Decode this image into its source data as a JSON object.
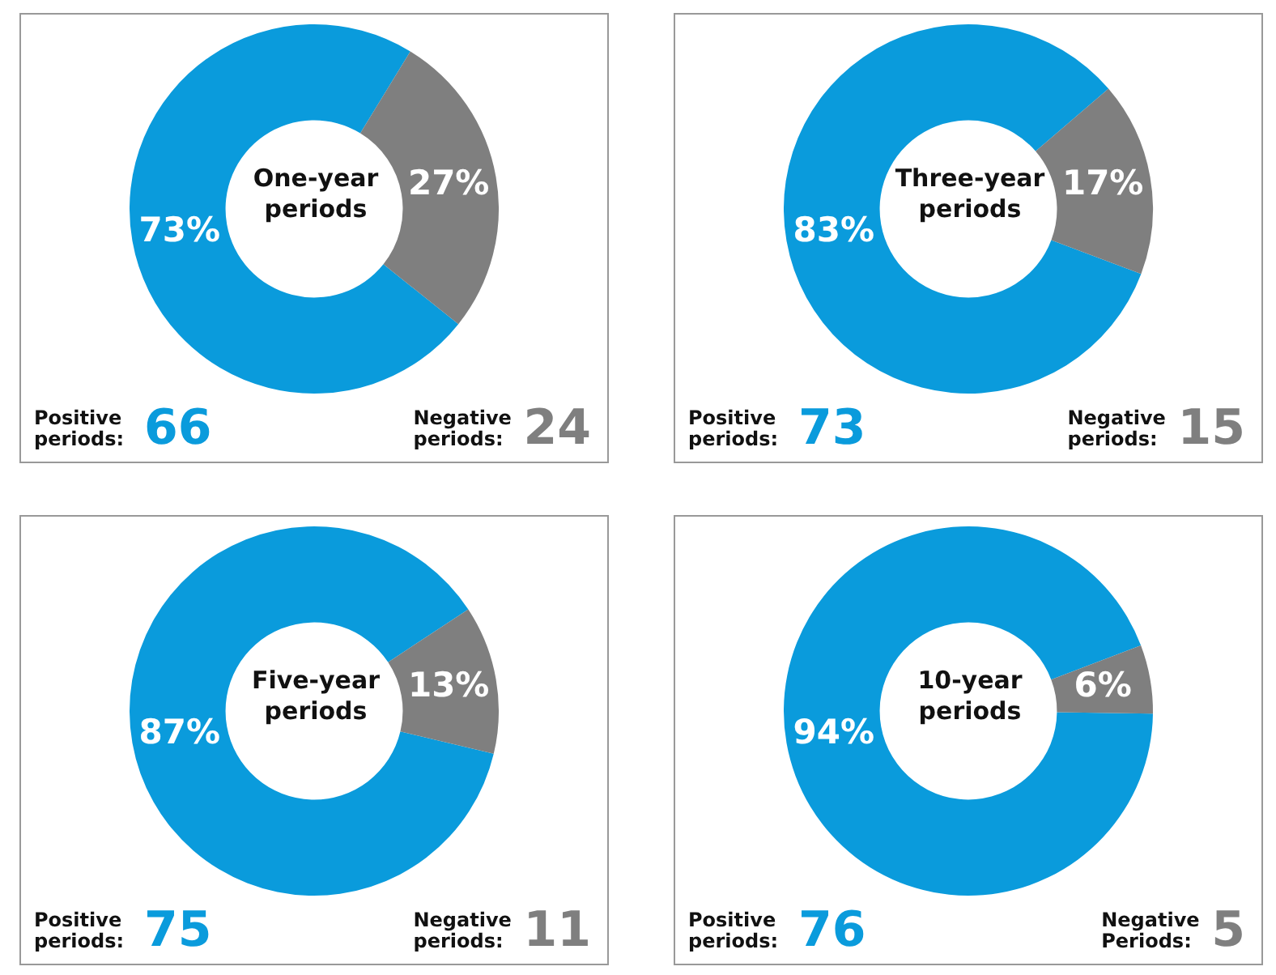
{
  "chart_data": [
    {
      "type": "donut",
      "title": "One-year periods",
      "categories": [
        null,
        null
      ],
      "values": [
        73,
        27
      ],
      "colors": [
        "#0a9bdc",
        "#7f7f7f"
      ],
      "value_labels": [
        "73%",
        "27%"
      ],
      "annotations": [
        "Positive periods: 66",
        "Negative periods: 24"
      ]
    },
    {
      "type": "donut",
      "title": "Three-year periods",
      "categories": [
        null,
        null
      ],
      "values": [
        83,
        17
      ],
      "colors": [
        "#0a9bdc",
        "#7f7f7f"
      ],
      "value_labels": [
        "83%",
        "17%"
      ],
      "annotations": [
        "Positive periods: 73",
        "Negative periods: 15"
      ]
    },
    {
      "type": "donut",
      "title": "Five-year periods",
      "categories": [
        null,
        null
      ],
      "values": [
        87,
        13
      ],
      "colors": [
        "#0a9bdc",
        "#7f7f7f"
      ],
      "value_labels": [
        "87%",
        "13%"
      ],
      "annotations": [
        "Positive periods: 75",
        "Negative periods: 11"
      ]
    },
    {
      "type": "donut",
      "title": "10-year periods",
      "categories": [
        null,
        null
      ],
      "values": [
        94,
        6
      ],
      "colors": [
        "#0a9bdc",
        "#7f7f7f"
      ],
      "value_labels": [
        "94%",
        "6%"
      ],
      "annotations": [
        "Positive periods: 76",
        "Negative Periods: 5"
      ]
    }
  ]
}
